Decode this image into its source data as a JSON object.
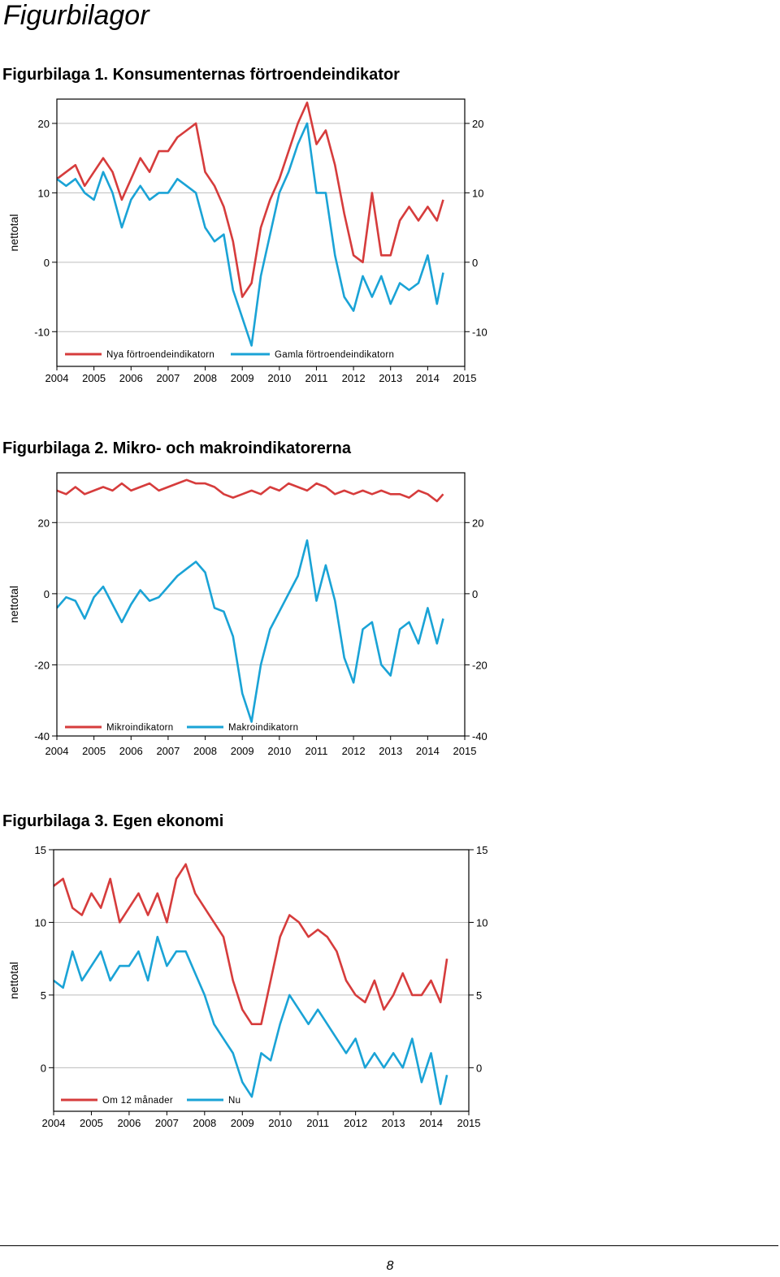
{
  "page": {
    "heading": "Figurbilagor",
    "page_number": "8"
  },
  "colors": {
    "red": "#d63c3c",
    "blue": "#1aa3d6",
    "grid": "#bdbdbd"
  },
  "chart_data": [
    {
      "type": "line",
      "title": "Figurbilaga 1. Konsumenternas förtroendeindikator",
      "ylabel": "nettotal",
      "xlim": [
        2004,
        2015
      ],
      "ylim": [
        -15,
        23.5
      ],
      "yticks": [
        -10,
        0,
        10,
        20
      ],
      "xticks": [
        2004,
        2005,
        2006,
        2007,
        2008,
        2009,
        2010,
        2011,
        2012,
        2013,
        2014,
        2015
      ],
      "legend": "bottom",
      "series": [
        {
          "name": "Nya förtroendeindikatorn",
          "color": "red",
          "x": [
            2004.0,
            2004.25,
            2004.5,
            2004.75,
            2005.0,
            2005.25,
            2005.5,
            2005.75,
            2006.0,
            2006.25,
            2006.5,
            2006.75,
            2007.0,
            2007.25,
            2007.5,
            2007.75,
            2008.0,
            2008.25,
            2008.5,
            2008.75,
            2009.0,
            2009.25,
            2009.5,
            2009.75,
            2010.0,
            2010.25,
            2010.5,
            2010.75,
            2011.0,
            2011.25,
            2011.5,
            2011.75,
            2012.0,
            2012.25,
            2012.5,
            2012.75,
            2013.0,
            2013.25,
            2013.5,
            2013.75,
            2014.0,
            2014.25,
            2014.42
          ],
          "y": [
            12,
            13,
            14,
            11,
            13,
            15,
            13,
            9,
            12,
            15,
            13,
            16,
            16,
            18,
            19,
            20,
            13,
            11,
            8,
            3,
            -5,
            -3,
            5,
            9,
            12,
            16,
            20,
            23,
            17,
            19,
            14,
            7,
            1,
            0,
            10,
            1,
            1,
            6,
            8,
            6,
            8,
            6,
            9
          ]
        },
        {
          "name": "Gamla förtroendeindikatorn",
          "color": "blue",
          "x": [
            2004.0,
            2004.25,
            2004.5,
            2004.75,
            2005.0,
            2005.25,
            2005.5,
            2005.75,
            2006.0,
            2006.25,
            2006.5,
            2006.75,
            2007.0,
            2007.25,
            2007.5,
            2007.75,
            2008.0,
            2008.25,
            2008.5,
            2008.75,
            2009.0,
            2009.25,
            2009.5,
            2009.75,
            2010.0,
            2010.25,
            2010.5,
            2010.75,
            2011.0,
            2011.25,
            2011.5,
            2011.75,
            2012.0,
            2012.25,
            2012.5,
            2012.75,
            2013.0,
            2013.25,
            2013.5,
            2013.75,
            2014.0,
            2014.25,
            2014.42
          ],
          "y": [
            12,
            11,
            12,
            10,
            9,
            13,
            10,
            5,
            9,
            11,
            9,
            10,
            10,
            12,
            11,
            10,
            5,
            3,
            4,
            -4,
            -8,
            -12,
            -2,
            4,
            10,
            13,
            17,
            20,
            10,
            10,
            1,
            -5,
            -7,
            -2,
            -5,
            -2,
            -6,
            -3,
            -4,
            -3,
            1,
            -6,
            -1.5
          ]
        }
      ]
    },
    {
      "type": "line",
      "title": "Figurbilaga 2. Mikro- och makroindikatorerna",
      "ylabel": "nettotal",
      "xlim": [
        2004,
        2015
      ],
      "ylim": [
        -40,
        34
      ],
      "yticks": [
        -40,
        -20,
        0,
        20
      ],
      "xticks": [
        2004,
        2005,
        2006,
        2007,
        2008,
        2009,
        2010,
        2011,
        2012,
        2013,
        2014,
        2015
      ],
      "legend": "bottom",
      "series": [
        {
          "name": "Mikroindikatorn",
          "color": "red",
          "x": [
            2004.0,
            2004.25,
            2004.5,
            2004.75,
            2005.0,
            2005.25,
            2005.5,
            2005.75,
            2006.0,
            2006.25,
            2006.5,
            2006.75,
            2007.0,
            2007.25,
            2007.5,
            2007.75,
            2008.0,
            2008.25,
            2008.5,
            2008.75,
            2009.0,
            2009.25,
            2009.5,
            2009.75,
            2010.0,
            2010.25,
            2010.5,
            2010.75,
            2011.0,
            2011.25,
            2011.5,
            2011.75,
            2012.0,
            2012.25,
            2012.5,
            2012.75,
            2013.0,
            2013.25,
            2013.5,
            2013.75,
            2014.0,
            2014.25,
            2014.42
          ],
          "y": [
            29,
            28,
            30,
            28,
            29,
            30,
            29,
            31,
            29,
            30,
            31,
            29,
            30,
            31,
            32,
            31,
            31,
            30,
            28,
            27,
            28,
            29,
            28,
            30,
            29,
            31,
            30,
            29,
            31,
            30,
            28,
            29,
            28,
            29,
            28,
            29,
            28,
            28,
            27,
            29,
            28,
            26,
            28
          ]
        },
        {
          "name": "Makroindikatorn",
          "color": "blue",
          "x": [
            2004.0,
            2004.25,
            2004.5,
            2004.75,
            2005.0,
            2005.25,
            2005.5,
            2005.75,
            2006.0,
            2006.25,
            2006.5,
            2006.75,
            2007.0,
            2007.25,
            2007.5,
            2007.75,
            2008.0,
            2008.25,
            2008.5,
            2008.75,
            2009.0,
            2009.25,
            2009.5,
            2009.75,
            2010.0,
            2010.25,
            2010.5,
            2010.75,
            2011.0,
            2011.25,
            2011.5,
            2011.75,
            2012.0,
            2012.25,
            2012.5,
            2012.75,
            2013.0,
            2013.25,
            2013.5,
            2013.75,
            2014.0,
            2014.25,
            2014.42
          ],
          "y": [
            -4,
            -1,
            -2,
            -7,
            -1,
            2,
            -3,
            -8,
            -3,
            1,
            -2,
            -1,
            2,
            5,
            7,
            9,
            6,
            -4,
            -5,
            -12,
            -28,
            -36,
            -20,
            -10,
            -5,
            0,
            5,
            15,
            -2,
            8,
            -2,
            -18,
            -25,
            -10,
            -8,
            -20,
            -23,
            -10,
            -8,
            -14,
            -4,
            -14,
            -7
          ]
        }
      ]
    },
    {
      "type": "line",
      "title": "Figurbilaga 3. Egen ekonomi",
      "ylabel": "nettotal",
      "xlim": [
        2004,
        2015
      ],
      "ylim": [
        -3,
        15
      ],
      "yticks": [
        0,
        5,
        10,
        15
      ],
      "xticks": [
        2004,
        2005,
        2006,
        2007,
        2008,
        2009,
        2010,
        2011,
        2012,
        2013,
        2014,
        2015
      ],
      "legend": "bottom",
      "series": [
        {
          "name": "Om 12 månader",
          "color": "red",
          "x": [
            2004.0,
            2004.25,
            2004.5,
            2004.75,
            2005.0,
            2005.25,
            2005.5,
            2005.75,
            2006.0,
            2006.25,
            2006.5,
            2006.75,
            2007.0,
            2007.25,
            2007.5,
            2007.75,
            2008.0,
            2008.25,
            2008.5,
            2008.75,
            2009.0,
            2009.25,
            2009.5,
            2009.75,
            2010.0,
            2010.25,
            2010.5,
            2010.75,
            2011.0,
            2011.25,
            2011.5,
            2011.75,
            2012.0,
            2012.25,
            2012.5,
            2012.75,
            2013.0,
            2013.25,
            2013.5,
            2013.75,
            2014.0,
            2014.25,
            2014.42
          ],
          "y": [
            12.5,
            13,
            11,
            10.5,
            12,
            11,
            13,
            10,
            11,
            12,
            10.5,
            12,
            10,
            13,
            14,
            12,
            11,
            10,
            9,
            6,
            4,
            3,
            3,
            6,
            9,
            10.5,
            10,
            9,
            9.5,
            9,
            8,
            6,
            5,
            4.5,
            6,
            4,
            5,
            6.5,
            5,
            5,
            6,
            4.5,
            7.5
          ]
        },
        {
          "name": "Nu",
          "color": "blue",
          "x": [
            2004.0,
            2004.25,
            2004.5,
            2004.75,
            2005.0,
            2005.25,
            2005.5,
            2005.75,
            2006.0,
            2006.25,
            2006.5,
            2006.75,
            2007.0,
            2007.25,
            2007.5,
            2007.75,
            2008.0,
            2008.25,
            2008.5,
            2008.75,
            2009.0,
            2009.25,
            2009.5,
            2009.75,
            2010.0,
            2010.25,
            2010.5,
            2010.75,
            2011.0,
            2011.25,
            2011.5,
            2011.75,
            2012.0,
            2012.25,
            2012.5,
            2012.75,
            2013.0,
            2013.25,
            2013.5,
            2013.75,
            2014.0,
            2014.25,
            2014.42
          ],
          "y": [
            6,
            5.5,
            8,
            6,
            7,
            8,
            6,
            7,
            7,
            8,
            6,
            9,
            7,
            8,
            8,
            6.5,
            5,
            3,
            2,
            1,
            -1,
            -2,
            1,
            0.5,
            3,
            5,
            4,
            3,
            4,
            3,
            2,
            1,
            2,
            0,
            1,
            0,
            1,
            0,
            2,
            -1,
            1,
            -2.5,
            -0.5
          ]
        }
      ]
    }
  ]
}
